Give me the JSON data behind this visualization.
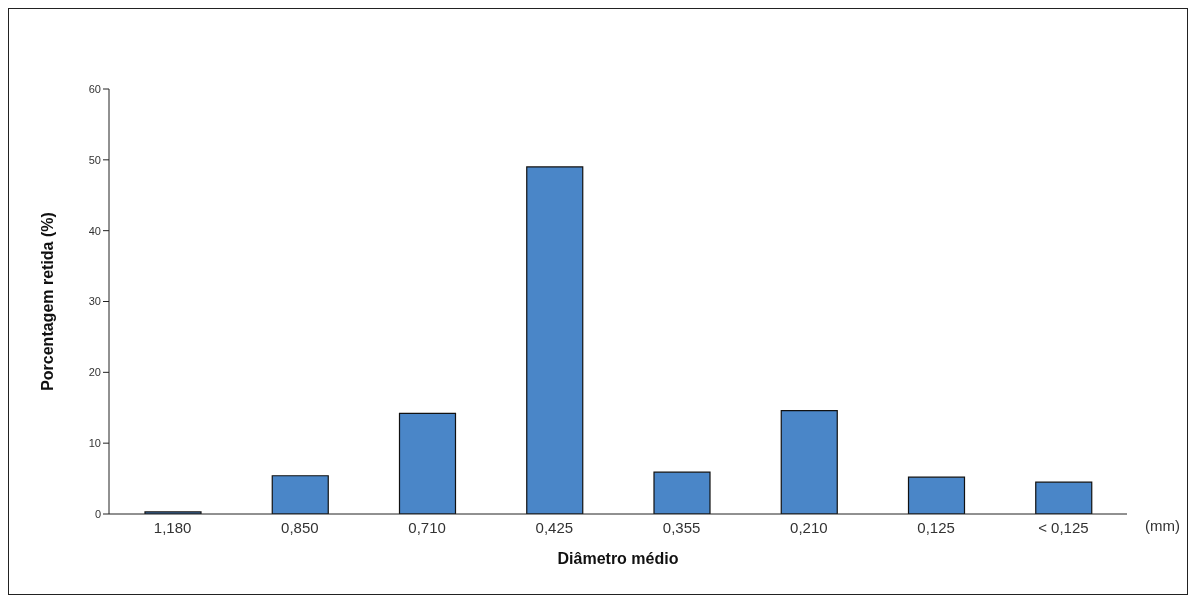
{
  "chart_data": {
    "type": "bar",
    "xlabel": "Diâmetro médio",
    "ylabel": "Porcentagem retida (%)",
    "categories": [
      "1,180",
      "0,850",
      "0,710",
      "0,425",
      "0,355",
      "0,210",
      "0,125",
      "< 0,125"
    ],
    "values": [
      0.3,
      5.4,
      14.2,
      49.0,
      5.9,
      14.6,
      5.2,
      4.5
    ],
    "color": "#4a86c8",
    "ylim": [
      0,
      60
    ],
    "yticks": [
      0,
      10,
      20,
      30,
      40,
      50,
      60
    ],
    "annotations": [
      "(mm)"
    ]
  }
}
